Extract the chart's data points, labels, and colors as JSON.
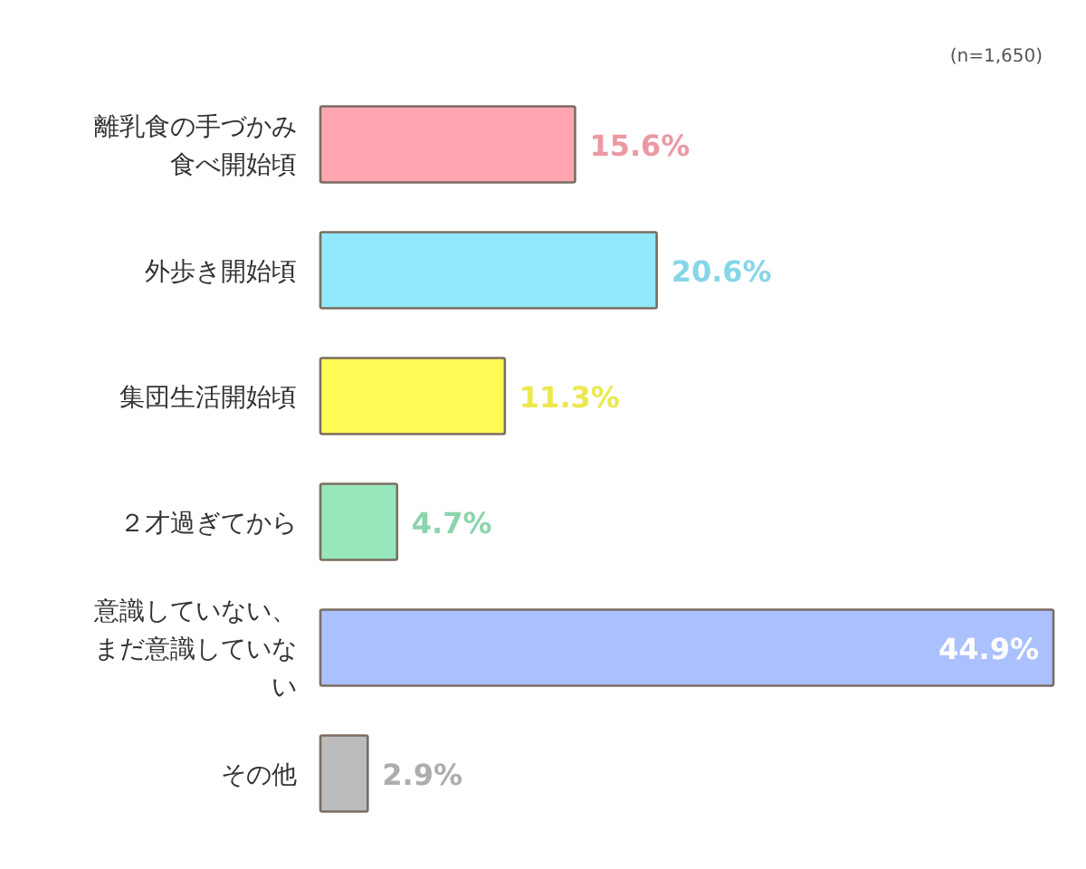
{
  "chart_data": {
    "type": "bar",
    "orientation": "horizontal",
    "categories": [
      "離乳食の手づかみ食べ開始頃",
      "外歩き開始頃",
      "集団生活開始頃",
      "２才過ぎてから",
      "意識していない、まだ意識していない",
      "その他"
    ],
    "values": [
      15.6,
      20.6,
      11.3,
      4.7,
      44.9,
      2.9
    ],
    "value_labels": [
      "15.6%",
      "20.6%",
      "11.3%",
      "4.7%",
      "44.9%",
      "2.9%"
    ],
    "colors": [
      "#ffa6b0",
      "#92e9fd",
      "#fffd55",
      "#98e6bb",
      "#abc0ff",
      "#bcbcbc"
    ],
    "annotations": [
      "(n=1,650)"
    ]
  }
}
